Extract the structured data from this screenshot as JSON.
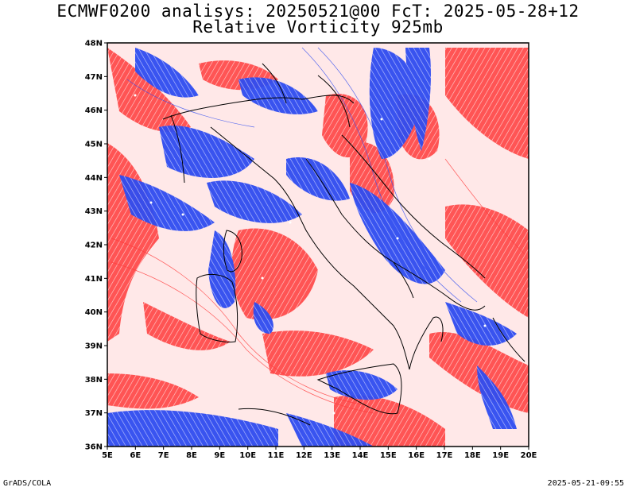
{
  "header": {
    "line1": "ECMWF0200 analisys: 20250521@00 FcT: 2025-05-28+12",
    "line2": "Relative Vorticity 925mb"
  },
  "map": {
    "lat_labels": [
      "48N",
      "47N",
      "46N",
      "45N",
      "44N",
      "43N",
      "42N",
      "41N",
      "40N",
      "39N",
      "38N",
      "37N",
      "36N"
    ],
    "lon_labels": [
      "5E",
      "6E",
      "7E",
      "8E",
      "9E",
      "10E",
      "11E",
      "12E",
      "13E",
      "14E",
      "15E",
      "16E",
      "17E",
      "18E",
      "19E",
      "20E"
    ],
    "lat_range": [
      36,
      48
    ],
    "lon_range": [
      5,
      20
    ],
    "colors": {
      "positive": "#ff3b3b",
      "positive_light": "#ffb3b3",
      "negative": "#2f4cf0",
      "negative_light": "#a9b6ff",
      "coast": "#000000"
    }
  },
  "footer": {
    "left": "GrADS/COLA",
    "right": "2025-05-21-09:55"
  }
}
